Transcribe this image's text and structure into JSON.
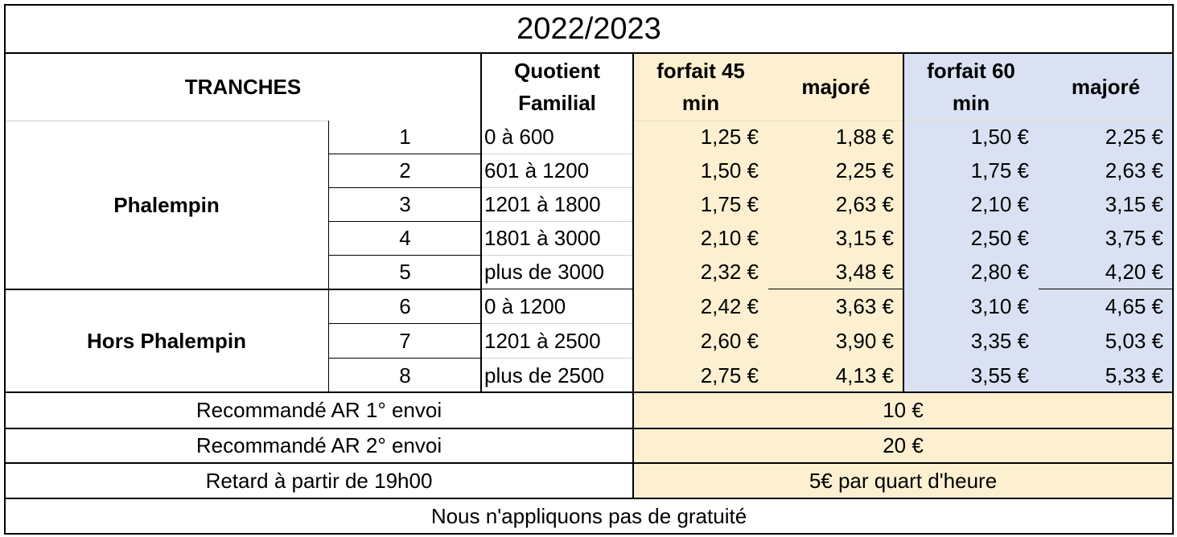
{
  "title": "2022/2023",
  "colors": {
    "forfait45_bg": "#fdf0d1",
    "forfait60_bg": "#dae1f2",
    "border": "#000000",
    "gridline": "#d0d0d0"
  },
  "headers": {
    "tranches": "TRANCHES",
    "quotient_line1": "Quotient",
    "quotient_line2": "Familial",
    "forfait45_line1": "forfait 45",
    "forfait45_line2": "min",
    "majore45": "majoré",
    "forfait60_line1": "forfait 60",
    "forfait60_line2": "min",
    "majore60": "majoré"
  },
  "groups": [
    "Phalempin",
    "Hors Phalempin"
  ],
  "rows": [
    {
      "tranche": "1",
      "quotient": "0 à 600",
      "f45": "1,25 €",
      "m45": "1,88 €",
      "f60": "1,50 €",
      "m60": "2,25 €"
    },
    {
      "tranche": "2",
      "quotient": "601 à 1200",
      "f45": "1,50 €",
      "m45": "2,25 €",
      "f60": "1,75 €",
      "m60": "2,63 €"
    },
    {
      "tranche": "3",
      "quotient": "1201 à 1800",
      "f45": "1,75 €",
      "m45": "2,63 €",
      "f60": "2,10 €",
      "m60": "3,15 €"
    },
    {
      "tranche": "4",
      "quotient": "1801 à 3000",
      "f45": "2,10 €",
      "m45": "3,15 €",
      "f60": "2,50 €",
      "m60": "3,75 €"
    },
    {
      "tranche": "5",
      "quotient": "plus de 3000",
      "f45": "2,32 €",
      "m45": "3,48 €",
      "f60": "2,80 €",
      "m60": "4,20 €"
    },
    {
      "tranche": "6",
      "quotient": "0 à 1200",
      "f45": "2,42 €",
      "m45": "3,63 €",
      "f60": "3,10 €",
      "m60": "4,65 €"
    },
    {
      "tranche": "7",
      "quotient": "1201 à 2500",
      "f45": "2,60 €",
      "m45": "3,90 €",
      "f60": "3,35 €",
      "m60": "5,03 €"
    },
    {
      "tranche": "8",
      "quotient": "plus de 2500",
      "f45": "2,75 €",
      "m45": "4,13 €",
      "f60": "3,55 €",
      "m60": "5,33 €"
    }
  ],
  "fees": [
    {
      "label": "Recommandé AR 1° envoi",
      "value": "10 €"
    },
    {
      "label": "Recommandé AR 2° envoi",
      "value": "20 €"
    },
    {
      "label": "Retard à partir de 19h00",
      "value": "5€ par quart d'heure"
    }
  ],
  "footer": "Nous n'appliquons pas de gratuité"
}
